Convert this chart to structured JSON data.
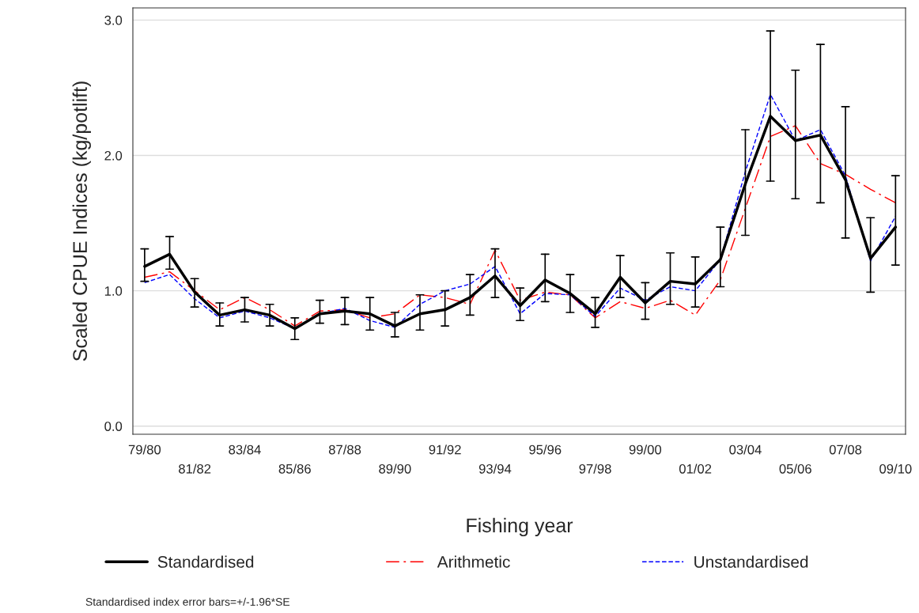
{
  "chart_data": {
    "type": "line",
    "xlabel": "Fishing year",
    "ylabel": "Scaled CPUE Indices (kg/potlift)",
    "categories": [
      "79/80",
      null,
      "81/82",
      null,
      "83/84",
      null,
      "85/86",
      null,
      "87/88",
      null,
      "89/90",
      null,
      "91/92",
      null,
      "93/94",
      null,
      "95/96",
      null,
      "97/98",
      null,
      "99/00",
      null,
      "01/02",
      null,
      "03/04",
      null,
      "05/06",
      null,
      "07/08",
      null,
      "09/10"
    ],
    "series": [
      {
        "name": "Standardised",
        "color": "#000000",
        "line_style": "solid",
        "values": [
          1.18,
          1.27,
          0.99,
          0.82,
          0.86,
          0.82,
          0.72,
          0.83,
          0.85,
          0.83,
          0.74,
          0.83,
          0.86,
          0.95,
          1.11,
          0.89,
          1.08,
          0.98,
          0.83,
          1.1,
          0.91,
          1.07,
          1.05,
          1.23,
          1.79,
          2.29,
          2.11,
          2.15,
          1.82,
          1.24,
          1.47
        ],
        "errors": [
          [
            1.07,
            1.31
          ],
          [
            1.16,
            1.4
          ],
          [
            0.88,
            1.09
          ],
          [
            0.74,
            0.91
          ],
          [
            0.77,
            0.95
          ],
          [
            0.74,
            0.9
          ],
          [
            0.64,
            0.8
          ],
          [
            0.76,
            0.93
          ],
          [
            0.75,
            0.95
          ],
          [
            0.71,
            0.95
          ],
          [
            0.66,
            0.84
          ],
          [
            0.71,
            0.97
          ],
          [
            0.74,
            1.0
          ],
          [
            0.82,
            1.12
          ],
          [
            0.95,
            1.31
          ],
          [
            0.78,
            1.02
          ],
          [
            0.92,
            1.27
          ],
          [
            0.84,
            1.12
          ],
          [
            0.73,
            0.95
          ],
          [
            0.95,
            1.26
          ],
          [
            0.79,
            1.06
          ],
          [
            0.9,
            1.28
          ],
          [
            0.88,
            1.25
          ],
          [
            1.03,
            1.47
          ],
          [
            1.41,
            2.19
          ],
          [
            1.81,
            2.92
          ],
          [
            1.68,
            2.63
          ],
          [
            1.65,
            2.82
          ],
          [
            1.39,
            2.36
          ],
          [
            0.99,
            1.54
          ],
          [
            1.19,
            1.85
          ]
        ]
      },
      {
        "name": "Arithmetic",
        "color": "#ff0000",
        "line_style": "dashdot",
        "values": [
          1.1,
          1.14,
          1.0,
          0.86,
          0.95,
          0.86,
          0.74,
          0.85,
          0.86,
          0.8,
          0.83,
          0.97,
          0.95,
          0.9,
          1.3,
          0.93,
          0.99,
          0.97,
          0.8,
          0.92,
          0.87,
          0.93,
          0.82,
          1.08,
          1.61,
          2.14,
          2.22,
          1.94,
          1.86,
          1.75,
          1.65
        ]
      },
      {
        "name": "Unstandardised",
        "color": "#0000ff",
        "line_style": "dashed",
        "values": [
          1.06,
          1.12,
          0.94,
          0.8,
          0.85,
          0.8,
          0.72,
          0.83,
          0.87,
          0.78,
          0.73,
          0.9,
          1.0,
          1.05,
          1.18,
          0.83,
          0.98,
          0.97,
          0.81,
          1.02,
          0.93,
          1.03,
          1.0,
          1.23,
          1.88,
          2.45,
          2.11,
          2.19,
          1.85,
          1.22,
          1.55
        ]
      }
    ],
    "ylim": [
      -0.06,
      3.09
    ],
    "yticks": [
      {
        "value": 0,
        "label": "0.0"
      },
      {
        "value": 1,
        "label": "1.0"
      },
      {
        "value": 2,
        "label": "2.0"
      },
      {
        "value": 3,
        "label": "3.0"
      }
    ],
    "grid": "y",
    "legend": "bottom",
    "marker": "none",
    "annotations": [
      "Standardised index error bars=+/-1.96*SE"
    ]
  }
}
